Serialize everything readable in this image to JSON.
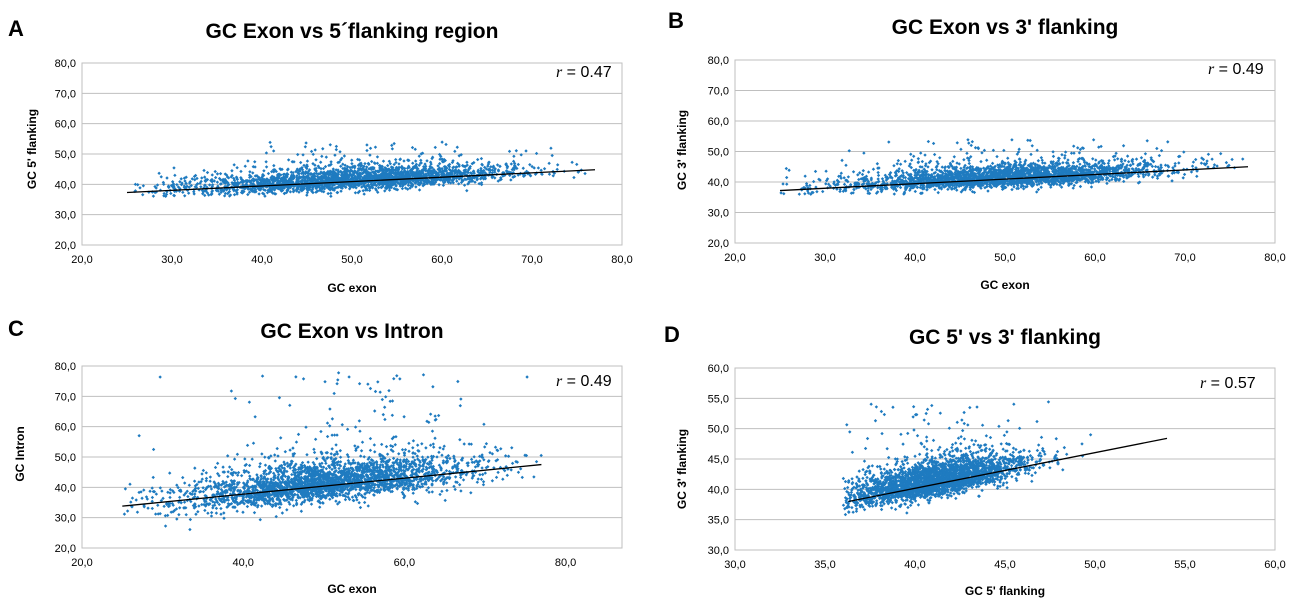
{
  "chart_data": [
    {
      "panel_letter": "A",
      "type": "scatter",
      "title": "GC Exon vs 5´flanking region",
      "xlabel": "GC exon",
      "ylabel": "GC 5' flanking",
      "xlim": [
        20,
        80
      ],
      "ylim": [
        20,
        80
      ],
      "x_ticks": [
        20,
        30,
        40,
        50,
        60,
        70,
        80
      ],
      "x_tick_labels": [
        "20,0",
        "30,0",
        "40,0",
        "50,0",
        "60,0",
        "70,0",
        "80,0"
      ],
      "y_ticks": [
        20,
        30,
        40,
        50,
        60,
        70,
        80
      ],
      "y_tick_labels": [
        "20,0",
        "30,0",
        "40,0",
        "50,0",
        "60,0",
        "70,0",
        "80,0"
      ],
      "grid": "horizontal",
      "annotation_symbol": "r",
      "annotation_value": " = 0.47",
      "r": 0.47,
      "point_color": "#1f7bc0",
      "trendline": {
        "x": [
          25,
          77
        ],
        "y": [
          37.3,
          44.8
        ]
      },
      "cloud": {
        "x_mean": 50,
        "x_sd": 9,
        "x_range": [
          25,
          77
        ],
        "y_center_at_x": [
          [
            25,
            37.3
          ],
          [
            77,
            44.8
          ]
        ],
        "y_sd": 2.5,
        "y_range": [
          36,
          54
        ],
        "n": 2600
      }
    },
    {
      "panel_letter": "B",
      "type": "scatter",
      "title": "GC Exon vs 3' flanking",
      "xlabel": "GC exon",
      "ylabel": "GC 3' flanking",
      "xlim": [
        20,
        80
      ],
      "ylim": [
        20,
        80
      ],
      "x_ticks": [
        20,
        30,
        40,
        50,
        60,
        70,
        80
      ],
      "x_tick_labels": [
        "20,0",
        "30,0",
        "40,0",
        "50,0",
        "60,0",
        "70,0",
        "80,0"
      ],
      "y_ticks": [
        20,
        30,
        40,
        50,
        60,
        70,
        80
      ],
      "y_tick_labels": [
        "20,0",
        "30,0",
        "40,0",
        "50,0",
        "60,0",
        "70,0",
        "80,0"
      ],
      "grid": "horizontal",
      "annotation_symbol": "r",
      "annotation_value": " = 0.49",
      "r": 0.49,
      "point_color": "#1f7bc0",
      "trendline": {
        "x": [
          25,
          77
        ],
        "y": [
          37.2,
          45.0
        ]
      },
      "cloud": {
        "x_mean": 50,
        "x_sd": 9,
        "x_range": [
          25,
          77
        ],
        "y_center_at_x": [
          [
            25,
            37.2
          ],
          [
            77,
            45.0
          ]
        ],
        "y_sd": 2.5,
        "y_range": [
          36,
          54
        ],
        "n": 2600
      }
    },
    {
      "panel_letter": "C",
      "type": "scatter",
      "title": "GC Exon vs Intron",
      "xlabel": "GC exon",
      "ylabel": "GC Intron",
      "xlim": [
        20,
        87
      ],
      "ylim": [
        20,
        80
      ],
      "x_ticks": [
        20,
        40,
        60,
        80
      ],
      "x_tick_labels": [
        "20,0",
        "40,0",
        "60,0",
        "80,0"
      ],
      "y_ticks": [
        20,
        30,
        40,
        50,
        60,
        70,
        80
      ],
      "y_tick_labels": [
        "20,0",
        "30,0",
        "40,0",
        "50,0",
        "60,0",
        "70,0",
        "80,0"
      ],
      "grid": "horizontal",
      "annotation_symbol": "r",
      "annotation_value": " = 0.49",
      "r": 0.49,
      "point_color": "#1f7bc0",
      "trendline": {
        "x": [
          25,
          77
        ],
        "y": [
          33.8,
          47.5
        ]
      },
      "cloud": {
        "x_mean": 50,
        "x_sd": 9,
        "x_range": [
          25,
          77
        ],
        "y_center_at_x": [
          [
            25,
            33.8
          ],
          [
            77,
            47.5
          ]
        ],
        "y_sd": 4.5,
        "y_range": [
          21,
          78
        ],
        "n": 2800
      }
    },
    {
      "panel_letter": "D",
      "type": "scatter",
      "title": "GC 5' vs 3' flanking",
      "xlabel": "GC 5' flanking",
      "ylabel": "GC 3' flanking",
      "xlim": [
        30,
        60
      ],
      "ylim": [
        30,
        60
      ],
      "x_ticks": [
        30,
        35,
        40,
        45,
        50,
        55,
        60
      ],
      "x_tick_labels": [
        "30,0",
        "35,0",
        "40,0",
        "45,0",
        "50,0",
        "55,0",
        "60,0"
      ],
      "y_ticks": [
        30,
        35,
        40,
        45,
        50,
        55,
        60
      ],
      "y_tick_labels": [
        "30,0",
        "35,0",
        "40,0",
        "45,0",
        "50,0",
        "55,0",
        "60,0"
      ],
      "grid": "horizontal",
      "annotation_symbol": "r",
      "annotation_value": " = 0.57",
      "r": 0.57,
      "point_color": "#1f7bc0",
      "trendline": {
        "x": [
          36.3,
          54
        ],
        "y": [
          38.0,
          48.4
        ]
      },
      "cloud": {
        "x_mean": 41,
        "x_sd": 2.6,
        "x_range": [
          36,
          54
        ],
        "y_center_at_x": [
          [
            36,
            38.0
          ],
          [
            54,
            48.4
          ]
        ],
        "y_sd": 1.9,
        "y_range": [
          35.8,
          54.5
        ],
        "n": 2800
      }
    }
  ]
}
